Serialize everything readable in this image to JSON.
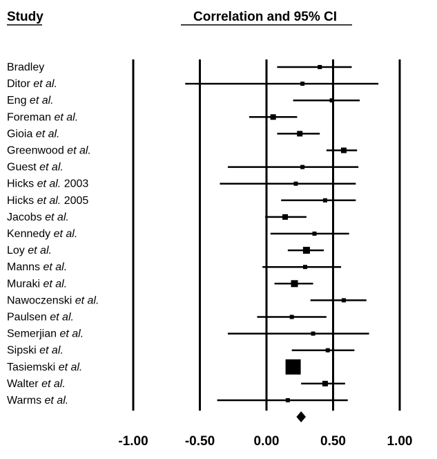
{
  "header": {
    "study": "Study",
    "ci": "Correlation and 95% CI"
  },
  "chart_data": {
    "type": "forest",
    "xlabel": "",
    "xlim": [
      -1.0,
      1.0
    ],
    "ticks": [
      -1.0,
      -0.5,
      0.0,
      0.5,
      1.0
    ],
    "tick_labels": [
      "-1.00",
      "-0.50",
      "0.00",
      "0.50",
      "1.00"
    ],
    "grid_vertical": true,
    "studies": [
      {
        "base": "Bradley",
        "etal": "",
        "suffix": "",
        "r": 0.4,
        "lower": 0.08,
        "upper": 0.64,
        "weight": 1
      },
      {
        "base": "Ditor ",
        "etal": "et al.",
        "suffix": "",
        "r": 0.27,
        "lower": -0.61,
        "upper": 0.84,
        "weight": 1
      },
      {
        "base": "Eng ",
        "etal": "et al.",
        "suffix": "",
        "r": 0.49,
        "lower": 0.2,
        "upper": 0.7,
        "weight": 1
      },
      {
        "base": "Foreman ",
        "etal": "et al.",
        "suffix": "",
        "r": 0.05,
        "lower": -0.13,
        "upper": 0.23,
        "weight": 1.5
      },
      {
        "base": "Gioia ",
        "etal": "et al.",
        "suffix": "",
        "r": 0.25,
        "lower": 0.08,
        "upper": 0.4,
        "weight": 1.5
      },
      {
        "base": "Greenwood ",
        "etal": "et al.",
        "suffix": "",
        "r": 0.58,
        "lower": 0.45,
        "upper": 0.68,
        "weight": 1.5
      },
      {
        "base": "Guest ",
        "etal": "et al.",
        "suffix": "",
        "r": 0.27,
        "lower": -0.29,
        "upper": 0.69,
        "weight": 1
      },
      {
        "base": "Hicks ",
        "etal": "et al.",
        "suffix": " 2003",
        "r": 0.22,
        "lower": -0.35,
        "upper": 0.67,
        "weight": 1
      },
      {
        "base": "Hicks ",
        "etal": "et al.",
        "suffix": " 2005",
        "r": 0.44,
        "lower": 0.11,
        "upper": 0.67,
        "weight": 1
      },
      {
        "base": "Jacobs ",
        "etal": "et al.",
        "suffix": "",
        "r": 0.14,
        "lower": -0.01,
        "upper": 0.3,
        "weight": 1.5
      },
      {
        "base": "Kennedy ",
        "etal": "et al.",
        "suffix": "",
        "r": 0.36,
        "lower": 0.03,
        "upper": 0.62,
        "weight": 1
      },
      {
        "base": "Loy ",
        "etal": "et al.",
        "suffix": "",
        "r": 0.3,
        "lower": 0.16,
        "upper": 0.43,
        "weight": 2
      },
      {
        "base": "Manns ",
        "etal": "et al.",
        "suffix": "",
        "r": 0.29,
        "lower": -0.03,
        "upper": 0.56,
        "weight": 1
      },
      {
        "base": "Muraki ",
        "etal": "et al.",
        "suffix": "",
        "r": 0.21,
        "lower": 0.06,
        "upper": 0.35,
        "weight": 2
      },
      {
        "base": "Nawoczenski ",
        "etal": "et al.",
        "suffix": "",
        "r": 0.58,
        "lower": 0.33,
        "upper": 0.75,
        "weight": 1
      },
      {
        "base": "Paulsen ",
        "etal": "et al.",
        "suffix": "",
        "r": 0.19,
        "lower": -0.07,
        "upper": 0.45,
        "weight": 1
      },
      {
        "base": "Semerjian ",
        "etal": "et al.",
        "suffix": "",
        "r": 0.35,
        "lower": -0.29,
        "upper": 0.77,
        "weight": 1
      },
      {
        "base": "Sipski ",
        "etal": "et al.",
        "suffix": "",
        "r": 0.46,
        "lower": 0.19,
        "upper": 0.66,
        "weight": 1
      },
      {
        "base": "Tasiemski ",
        "etal": "et al.",
        "suffix": "",
        "r": 0.2,
        "lower": 0.15,
        "upper": 0.25,
        "weight": 5
      },
      {
        "base": "Walter ",
        "etal": "et al.",
        "suffix": "",
        "r": 0.44,
        "lower": 0.26,
        "upper": 0.59,
        "weight": 1.5
      },
      {
        "base": "Warms ",
        "etal": "et al.",
        "suffix": "",
        "r": 0.16,
        "lower": -0.37,
        "upper": 0.61,
        "weight": 1
      }
    ],
    "summary": {
      "r": 0.26
    },
    "colors": {
      "ink": "#000000",
      "background": "#ffffff"
    }
  }
}
